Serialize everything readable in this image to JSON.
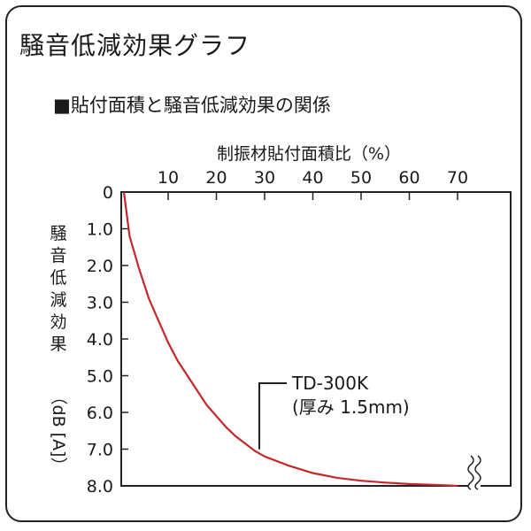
{
  "title": "騒音低減効果グラフ",
  "subtitle": "■貼付面積と騒音低減効果の関係",
  "colors": {
    "curve": "#c4272c",
    "frame": "#222222",
    "text": "#1a1a1a"
  },
  "chart_data": {
    "type": "line",
    "xlabel": "制振材貼付面積比（%）",
    "ylabel": "騒音低減効果（dB [A]）",
    "x_ticks": [
      "10",
      "20",
      "30",
      "40",
      "50",
      "60",
      "70"
    ],
    "y_ticks": [
      "0",
      "1.0",
      "2.0",
      "3.0",
      "4.0",
      "5.0",
      "6.0",
      "7.0",
      "8.0"
    ],
    "xlim": [
      0,
      77
    ],
    "ylim": [
      0,
      8
    ],
    "y_inverted": true,
    "axis_break": "x-axis, near the right end of the 8.0 baseline",
    "series": [
      {
        "name": "TD-300K",
        "x": [
          0,
          2,
          4,
          6,
          8,
          10,
          12,
          14,
          16,
          18,
          20,
          22,
          24,
          26,
          28,
          30,
          35,
          40,
          45,
          50,
          55,
          60,
          65,
          70
        ],
        "y": [
          0,
          1.2,
          2.1,
          2.9,
          3.5,
          4.1,
          4.6,
          5.0,
          5.4,
          5.8,
          6.1,
          6.4,
          6.65,
          6.85,
          7.05,
          7.2,
          7.45,
          7.65,
          7.78,
          7.86,
          7.91,
          7.95,
          7.97,
          8.0
        ]
      }
    ],
    "annotation": {
      "line1": "TD-300K",
      "line2": "(厚み 1.5mm)",
      "points_to": {
        "x": 29,
        "y": 7.2
      }
    }
  }
}
